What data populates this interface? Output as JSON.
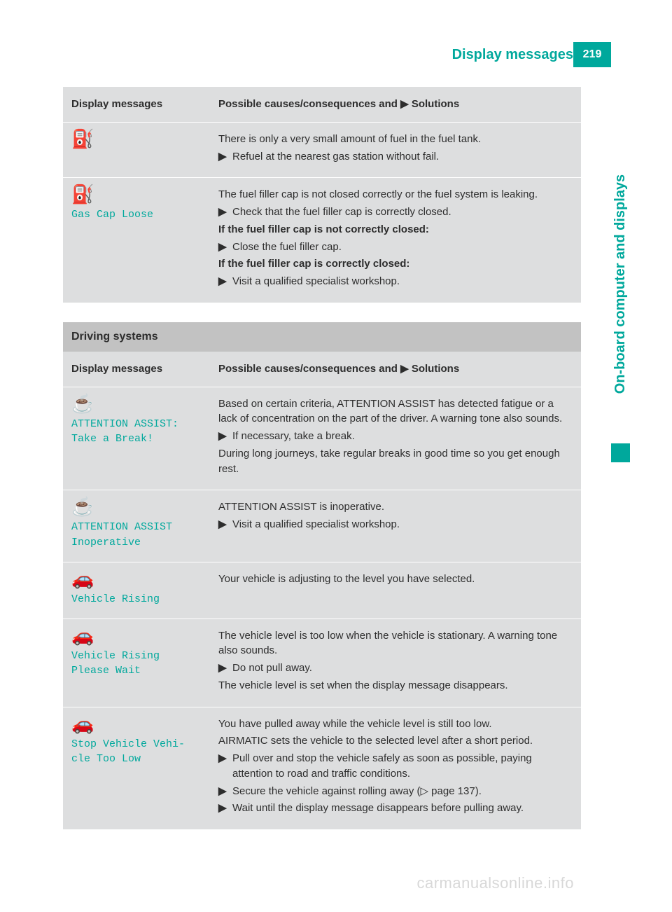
{
  "colors": {
    "accent": "#00a89c",
    "table_bg": "#dddedf",
    "section_bg": "#c2c2c2",
    "row_divider": "#ffffff",
    "text": "#2d2d2d",
    "watermark": "#d8d8d8"
  },
  "header": {
    "title": "Display messages",
    "page_number": "219"
  },
  "side_tab": {
    "label": "On-board computer and displays"
  },
  "table1": {
    "col_left_header": "Display messages",
    "col_right_header_prefix": "Possible causes/consequences and ",
    "col_right_header_mark": "▶",
    "col_right_header_suffix": " Solutions",
    "rows": [
      {
        "icon": "⛽",
        "code": "",
        "body": [
          {
            "type": "p",
            "text": "There is only a very small amount of fuel in the fuel tank."
          },
          {
            "type": "bullet",
            "mark": "▶",
            "text": "Refuel at the nearest gas station without fail."
          }
        ]
      },
      {
        "icon": "⛽",
        "code": "Gas Cap Loose",
        "body": [
          {
            "type": "p",
            "text": "The fuel filler cap is not closed correctly or the fuel system is leaking."
          },
          {
            "type": "bullet",
            "mark": "▶",
            "text": "Check that the fuel filler cap is correctly closed."
          },
          {
            "type": "pbold",
            "text": "If the fuel filler cap is not correctly closed:"
          },
          {
            "type": "bullet",
            "mark": "▶",
            "text": "Close the fuel filler cap."
          },
          {
            "type": "pbold",
            "text": "If the fuel filler cap is correctly closed:"
          },
          {
            "type": "bullet",
            "mark": "▶",
            "text": "Visit a qualified specialist workshop."
          }
        ]
      }
    ]
  },
  "section2_title": "Driving systems",
  "table2": {
    "col_left_header": "Display messages",
    "col_right_header_prefix": "Possible causes/consequences and ",
    "col_right_header_mark": "▶",
    "col_right_header_suffix": " Solutions",
    "rows": [
      {
        "icon": "☕",
        "code": "ATTENTION ASSIST:\nTake a Break!",
        "body": [
          {
            "type": "p",
            "text": "Based on certain criteria, ATTENTION ASSIST has detected fatigue or a lack of concentration on the part of the driver. A warning tone also sounds."
          },
          {
            "type": "bullet",
            "mark": "▶",
            "text": "If necessary, take a break."
          },
          {
            "type": "p",
            "text": "During long journeys, take regular breaks in good time so you get enough rest."
          }
        ]
      },
      {
        "icon": "☕",
        "code": "ATTENTION ASSIST\nInoperative",
        "body": [
          {
            "type": "p",
            "text": "ATTENTION ASSIST is inoperative."
          },
          {
            "type": "bullet",
            "mark": "▶",
            "text": "Visit a qualified specialist workshop."
          }
        ]
      },
      {
        "icon": "🚗",
        "code": "Vehicle Rising",
        "body": [
          {
            "type": "p",
            "text": "Your vehicle is adjusting to the level you have selected."
          }
        ]
      },
      {
        "icon": "🚗",
        "code": "Vehicle Rising\nPlease Wait",
        "body": [
          {
            "type": "p",
            "text": "The vehicle level is too low when the vehicle is stationary. A warning tone also sounds."
          },
          {
            "type": "bullet",
            "mark": "▶",
            "text": "Do not pull away."
          },
          {
            "type": "sub",
            "text": "The vehicle level is set when the display message disappears."
          }
        ]
      },
      {
        "icon": "🚗",
        "code": "Stop Vehicle Vehi‐\ncle Too Low",
        "body": [
          {
            "type": "p",
            "text": "You have pulled away while the vehicle level is still too low."
          },
          {
            "type": "p",
            "text": "AIRMATIC sets the vehicle to the selected level after a short period."
          },
          {
            "type": "bullet",
            "mark": "▶",
            "text": "Pull over and stop the vehicle safely as soon as possible, paying attention to road and traffic conditions."
          },
          {
            "type": "bullet",
            "mark": "▶",
            "text": "Secure the vehicle against rolling away (▷ page 137)."
          },
          {
            "type": "bullet",
            "mark": "▶",
            "text": "Wait until the display message disappears before pulling away."
          }
        ]
      }
    ]
  },
  "watermark": "carmanualsonline.info"
}
